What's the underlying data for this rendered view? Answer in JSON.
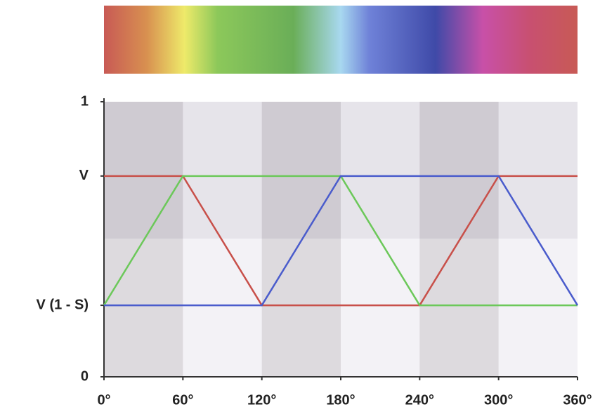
{
  "chart_data": {
    "type": "line",
    "x": [
      0,
      60,
      120,
      180,
      240,
      300,
      360
    ],
    "series": [
      {
        "color": "#c8504a",
        "values": [
          0.73,
          0.73,
          0.26,
          0.26,
          0.26,
          0.73,
          0.73
        ]
      },
      {
        "color": "#6cc85a",
        "values": [
          0.26,
          0.73,
          0.73,
          0.73,
          0.26,
          0.26,
          0.26
        ]
      },
      {
        "color": "#4a5ccc",
        "values": [
          0.26,
          0.26,
          0.26,
          0.73,
          0.73,
          0.73,
          0.26
        ]
      }
    ],
    "xlim": [
      0,
      360
    ],
    "xticks": [
      {
        "value": 0,
        "label": "0°"
      },
      {
        "value": 60,
        "label": "60°"
      },
      {
        "value": 120,
        "label": "120°"
      },
      {
        "value": 180,
        "label": "180°"
      },
      {
        "value": 240,
        "label": "240°"
      },
      {
        "value": 300,
        "label": "300°"
      },
      {
        "value": 360,
        "label": "360°"
      }
    ],
    "ylim": [
      0,
      1
    ],
    "yticks": [
      0,
      {
        "value": 0.26,
        "label": "V (1 - S)"
      },
      {
        "value": 0.73,
        "label": "V"
      },
      1
    ]
  }
}
